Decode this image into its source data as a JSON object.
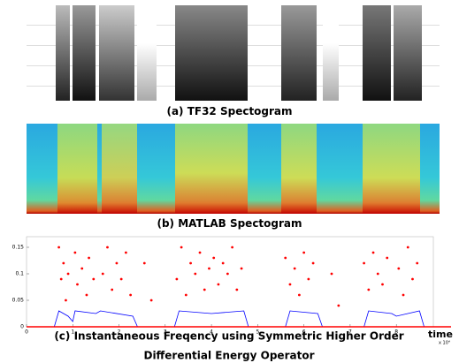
{
  "panels": [
    {
      "caption": "(a) TF32 Spectogram"
    },
    {
      "caption": "(b) MATLAB Spectogram"
    }
  ],
  "chart_data": {
    "type": "scatter",
    "caption": [
      "(c) Instantaneous Freqency using Symmetric Higher Order",
      "Differential Energy Operator"
    ],
    "x_label": "time",
    "x_multiplier": "x 10⁴",
    "xlim": [
      0,
      8.8
    ],
    "ylim": [
      0,
      0.17
    ],
    "xticks": [
      0,
      1,
      2,
      3,
      4,
      5,
      6,
      7,
      8
    ],
    "yticks": [
      0,
      0.05,
      0.1,
      0.15
    ],
    "series": [
      {
        "color": "#ff0000",
        "mode": "markers",
        "x": [
          0.7,
          0.75,
          0.8,
          0.85,
          0.9,
          1.05,
          1.1,
          1.2,
          1.3,
          1.35,
          1.45,
          1.65,
          1.75,
          1.85,
          1.95,
          2.05,
          2.15,
          2.25,
          2.55,
          2.7,
          3.25,
          3.35,
          3.45,
          3.55,
          3.65,
          3.75,
          3.85,
          3.95,
          4.05,
          4.15,
          4.25,
          4.35,
          4.45,
          4.55,
          4.65,
          5.6,
          5.7,
          5.8,
          5.9,
          6.0,
          6.1,
          6.2,
          6.6,
          6.75,
          7.3,
          7.4,
          7.5,
          7.6,
          7.7,
          7.8,
          8.05,
          8.15,
          8.25,
          8.35,
          8.45
        ],
        "values": [
          0.15,
          0.09,
          0.12,
          0.05,
          0.1,
          0.14,
          0.08,
          0.11,
          0.06,
          0.13,
          0.09,
          0.1,
          0.15,
          0.07,
          0.12,
          0.09,
          0.14,
          0.06,
          0.12,
          0.05,
          0.09,
          0.15,
          0.06,
          0.12,
          0.1,
          0.14,
          0.07,
          0.11,
          0.13,
          0.08,
          0.12,
          0.1,
          0.15,
          0.07,
          0.11,
          0.13,
          0.08,
          0.11,
          0.06,
          0.14,
          0.09,
          0.12,
          0.1,
          0.04,
          0.12,
          0.07,
          0.14,
          0.1,
          0.08,
          0.13,
          0.11,
          0.06,
          0.15,
          0.09,
          0.12
        ]
      },
      {
        "color": "#0000ff",
        "mode": "line",
        "x": [
          0.6,
          0.7,
          0.9,
          1.0,
          1.05,
          1.5,
          1.6,
          2.3,
          2.4,
          3.2,
          3.3,
          4.0,
          4.7,
          4.8,
          5.6,
          5.7,
          6.3,
          6.4,
          7.3,
          7.4,
          7.9,
          8.0,
          8.5,
          8.6
        ],
        "values": [
          0,
          0.03,
          0.02,
          0.01,
          0.03,
          0.025,
          0.03,
          0.02,
          0,
          0,
          0.03,
          0.025,
          0.03,
          0,
          0,
          0.03,
          0.025,
          0,
          0,
          0.03,
          0.025,
          0.02,
          0.03,
          0
        ]
      }
    ]
  }
}
